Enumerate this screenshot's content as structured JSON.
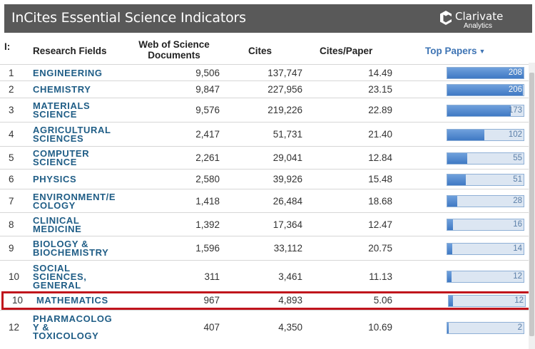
{
  "header": {
    "title": "InCites Essential Science Indicators",
    "logo_name": "Clarivate",
    "logo_sub": "Analytics"
  },
  "columns": {
    "rank": "I:",
    "field": "Research Fields",
    "docs": "Web of Science Documents",
    "cites": "Cites",
    "cites_per_paper": "Cites/Paper",
    "top_papers": "Top Papers"
  },
  "rows": [
    {
      "rank": "1",
      "field": [
        "ENGINEERING"
      ],
      "docs": "9,506",
      "cites": "137,747",
      "cpp": "14.49",
      "top": "208"
    },
    {
      "rank": "2",
      "field": [
        "CHEMISTRY"
      ],
      "docs": "9,847",
      "cites": "227,956",
      "cpp": "23.15",
      "top": "206"
    },
    {
      "rank": "3",
      "field": [
        "MATERIALS",
        "SCIENCE"
      ],
      "docs": "9,576",
      "cites": "219,226",
      "cpp": "22.89",
      "top": "173"
    },
    {
      "rank": "4",
      "field": [
        "AGRICULTURAL",
        "SCIENCES"
      ],
      "docs": "2,417",
      "cites": "51,731",
      "cpp": "21.40",
      "top": "102"
    },
    {
      "rank": "5",
      "field": [
        "COMPUTER",
        "SCIENCE"
      ],
      "docs": "2,261",
      "cites": "29,041",
      "cpp": "12.84",
      "top": "55"
    },
    {
      "rank": "6",
      "field": [
        "PHYSICS"
      ],
      "docs": "2,580",
      "cites": "39,926",
      "cpp": "15.48",
      "top": "51"
    },
    {
      "rank": "7",
      "field": [
        "ENVIRONMENT/E",
        "COLOGY"
      ],
      "docs": "1,418",
      "cites": "26,484",
      "cpp": "18.68",
      "top": "28"
    },
    {
      "rank": "8",
      "field": [
        "CLINICAL",
        "MEDICINE"
      ],
      "docs": "1,392",
      "cites": "17,364",
      "cpp": "12.47",
      "top": "16"
    },
    {
      "rank": "9",
      "field": [
        "BIOLOGY &",
        "BIOCHEMISTRY"
      ],
      "docs": "1,596",
      "cites": "33,112",
      "cpp": "20.75",
      "top": "14"
    },
    {
      "rank": "10",
      "field": [
        "SOCIAL",
        "SCIENCES,",
        "GENERAL"
      ],
      "docs": "311",
      "cites": "3,461",
      "cpp": "11.13",
      "top": "12"
    },
    {
      "rank": "10",
      "field": [
        "MATHEMATICS"
      ],
      "docs": "967",
      "cites": "4,893",
      "cpp": "5.06",
      "top": "12",
      "highlight": true
    },
    {
      "rank": "12",
      "field": [
        "PHARMACOLOG",
        "Y &",
        "TOXICOLOGY"
      ],
      "docs": "407",
      "cites": "4,350",
      "cpp": "10.69",
      "top": "2"
    }
  ],
  "top_papers_max": 208
}
